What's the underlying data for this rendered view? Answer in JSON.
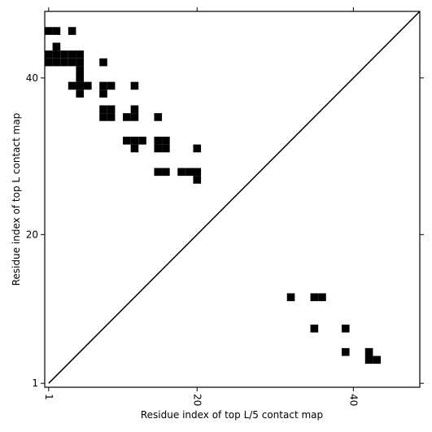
{
  "chart_data": {
    "type": "scatter",
    "marker": "square",
    "xlabel": "Residue index of top L/5 contact map",
    "ylabel": "Residue index of top L contact map",
    "xlim": [
      0.5,
      48.5
    ],
    "ylim": [
      0.5,
      48.5
    ],
    "xticks": [
      1,
      20,
      40
    ],
    "yticks": [
      1,
      20,
      40
    ],
    "series": [
      {
        "color": "#000000",
        "x": [
          1,
          2,
          4,
          2,
          1,
          2,
          3,
          4,
          5,
          1,
          2,
          3,
          4,
          5,
          8,
          5,
          5,
          4,
          5,
          6,
          8,
          9,
          12,
          5,
          8,
          8,
          9,
          12,
          8,
          9,
          11,
          12,
          15,
          11,
          12,
          13,
          15,
          16,
          12,
          15,
          16,
          20,
          15,
          16,
          18,
          19,
          20,
          20,
          32,
          35,
          36,
          35,
          39,
          39,
          42,
          42,
          43
        ],
        "y": [
          46,
          46,
          46,
          44,
          43,
          43,
          43,
          43,
          43,
          42,
          42,
          42,
          42,
          42,
          42,
          41,
          40,
          39,
          39,
          39,
          39,
          39,
          39,
          38,
          38,
          36,
          36,
          36,
          35,
          35,
          35,
          35,
          35,
          32,
          32,
          32,
          32,
          32,
          31,
          31,
          31,
          31,
          28,
          28,
          28,
          28,
          28,
          27,
          12,
          12,
          12,
          8,
          8,
          5,
          5,
          4,
          4
        ]
      }
    ]
  }
}
